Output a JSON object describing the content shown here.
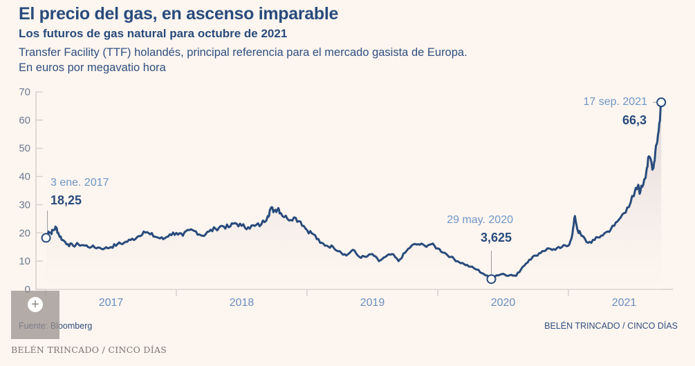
{
  "header": {
    "title": "El precio del gas, en ascenso imparable",
    "subtitle": "Los futuros de gas natural para octubre de 2021",
    "description_line1": "Transfer Facility (TTF) holandés, principal referencia para el mercado gasista de Europa.",
    "description_line2": "En euros por megavatio hora"
  },
  "footer": {
    "source": "Fuente:  Bloomberg",
    "credit_right": "BELÉN TRINCADO / CINCO DÍAS",
    "credit_bottom": "BELÉN TRINCADO / CINCO DÍAS",
    "expand_icon": "plus-icon",
    "expand_label": "+"
  },
  "colors": {
    "background": "#fdf5ef",
    "line": "#284b7c",
    "area_top": "#dcd6d8",
    "axis": "#d8cfcc",
    "annotation_date": "#6e97c8"
  },
  "chart_data": {
    "type": "area",
    "title": "El precio del gas, en ascenso imparable",
    "xlabel": "",
    "ylabel": "€/MWh",
    "ylim": [
      0,
      70
    ],
    "yticks": [
      0,
      10,
      20,
      30,
      40,
      50,
      60,
      70
    ],
    "ytick_labels": [
      "0",
      "10",
      "20",
      "30",
      "40",
      "50",
      "60",
      "70"
    ],
    "xlim": [
      2017.0,
      2021.8
    ],
    "xticks": [
      2017,
      2018,
      2019,
      2020,
      2021
    ],
    "xtick_labels": [
      "2017",
      "2018",
      "2019",
      "2020",
      "2021"
    ],
    "grid": false,
    "series": [
      {
        "name": "TTF octubre 2021",
        "x": [
          2017.003,
          2017.02,
          2017.04,
          2017.06,
          2017.08,
          2017.1,
          2017.13,
          2017.17,
          2017.21,
          2017.25,
          2017.3,
          2017.35,
          2017.4,
          2017.45,
          2017.5,
          2017.55,
          2017.6,
          2017.65,
          2017.7,
          2017.75,
          2017.8,
          2017.85,
          2017.9,
          2017.95,
          2018.0,
          2018.05,
          2018.1,
          2018.15,
          2018.2,
          2018.25,
          2018.3,
          2018.35,
          2018.4,
          2018.45,
          2018.5,
          2018.55,
          2018.6,
          2018.65,
          2018.7,
          2018.72,
          2018.75,
          2018.78,
          2018.8,
          2018.85,
          2018.9,
          2018.95,
          2019.0,
          2019.05,
          2019.1,
          2019.15,
          2019.2,
          2019.25,
          2019.3,
          2019.35,
          2019.4,
          2019.45,
          2019.5,
          2019.55,
          2019.6,
          2019.65,
          2019.7,
          2019.75,
          2019.8,
          2019.85,
          2019.9,
          2019.95,
          2020.0,
          2020.05,
          2020.1,
          2020.15,
          2020.2,
          2020.25,
          2020.3,
          2020.35,
          2020.41,
          2020.45,
          2020.5,
          2020.55,
          2020.6,
          2020.65,
          2020.7,
          2020.75,
          2020.8,
          2020.85,
          2020.9,
          2020.95,
          2021.0,
          2021.03,
          2021.05,
          2021.07,
          2021.1,
          2021.15,
          2021.2,
          2021.25,
          2021.3,
          2021.35,
          2021.4,
          2021.45,
          2021.5,
          2021.53,
          2021.55,
          2021.58,
          2021.6,
          2021.62,
          2021.65,
          2021.67,
          2021.69,
          2021.71
        ],
        "values": [
          18.25,
          20.5,
          20.0,
          21.0,
          22.0,
          19.5,
          17.5,
          16.0,
          15.5,
          16.0,
          15.5,
          15.0,
          14.8,
          14.5,
          15.0,
          16.0,
          16.5,
          17.5,
          18.5,
          20.5,
          19.5,
          18.5,
          17.8,
          19.5,
          20.0,
          19.0,
          21.0,
          20.5,
          19.0,
          20.5,
          21.5,
          22.5,
          22.0,
          23.5,
          22.5,
          22.0,
          22.5,
          23.0,
          26.0,
          28.5,
          28.0,
          28.8,
          27.0,
          25.0,
          25.5,
          24.0,
          21.0,
          19.5,
          16.5,
          15.5,
          15.0,
          13.5,
          12.0,
          14.0,
          11.5,
          11.5,
          12.5,
          10.0,
          11.5,
          12.5,
          10.0,
          13.0,
          15.5,
          16.0,
          15.5,
          16.0,
          14.5,
          13.0,
          11.5,
          10.0,
          9.0,
          8.0,
          7.0,
          5.5,
          3.625,
          5.0,
          5.5,
          5.0,
          4.8,
          8.0,
          10.5,
          12.0,
          13.5,
          14.5,
          14.0,
          15.0,
          15.5,
          19.5,
          26.0,
          21.0,
          19.0,
          16.5,
          17.5,
          19.0,
          20.5,
          22.5,
          25.5,
          29.0,
          33.0,
          36.5,
          34.5,
          39.0,
          43.0,
          47.0,
          43.0,
          51.0,
          56.0,
          66.3
        ]
      }
    ],
    "annotations": [
      {
        "date": "3 ene. 2017",
        "value_label": "18,25",
        "x": 2017.003,
        "y": 18.25
      },
      {
        "date": "29 may. 2020",
        "value_label": "3,625",
        "x": 2020.41,
        "y": 3.625
      },
      {
        "date": "17 sep. 2021",
        "value_label": "66,3",
        "x": 2021.71,
        "y": 66.3
      }
    ]
  }
}
